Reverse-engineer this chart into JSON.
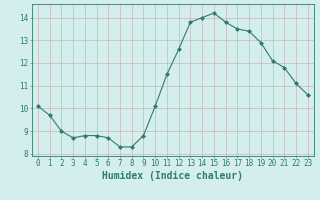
{
  "x": [
    0,
    1,
    2,
    3,
    4,
    5,
    6,
    7,
    8,
    9,
    10,
    11,
    12,
    13,
    14,
    15,
    16,
    17,
    18,
    19,
    20,
    21,
    22,
    23
  ],
  "y": [
    10.1,
    9.7,
    9.0,
    8.7,
    8.8,
    8.8,
    8.7,
    8.3,
    8.3,
    8.8,
    10.1,
    11.5,
    12.6,
    13.8,
    14.0,
    14.2,
    13.8,
    13.5,
    13.4,
    12.9,
    12.1,
    11.8,
    11.1,
    10.6
  ],
  "line_color": "#2d7d6e",
  "marker": "D",
  "marker_size": 2,
  "bg_color": "#d4eeed",
  "grid_color": "#c8a8a8",
  "xlabel": "Humidex (Indice chaleur)",
  "xlim": [
    -0.5,
    23.5
  ],
  "ylim": [
    7.9,
    14.6
  ],
  "yticks": [
    8,
    9,
    10,
    11,
    12,
    13,
    14
  ],
  "xticks": [
    0,
    1,
    2,
    3,
    4,
    5,
    6,
    7,
    8,
    9,
    10,
    11,
    12,
    13,
    14,
    15,
    16,
    17,
    18,
    19,
    20,
    21,
    22,
    23
  ],
  "tick_color": "#2d7d6e",
  "tick_fontsize": 5.5,
  "xlabel_fontsize": 7,
  "axis_color": "#2d7d6e",
  "lw": 0.8
}
